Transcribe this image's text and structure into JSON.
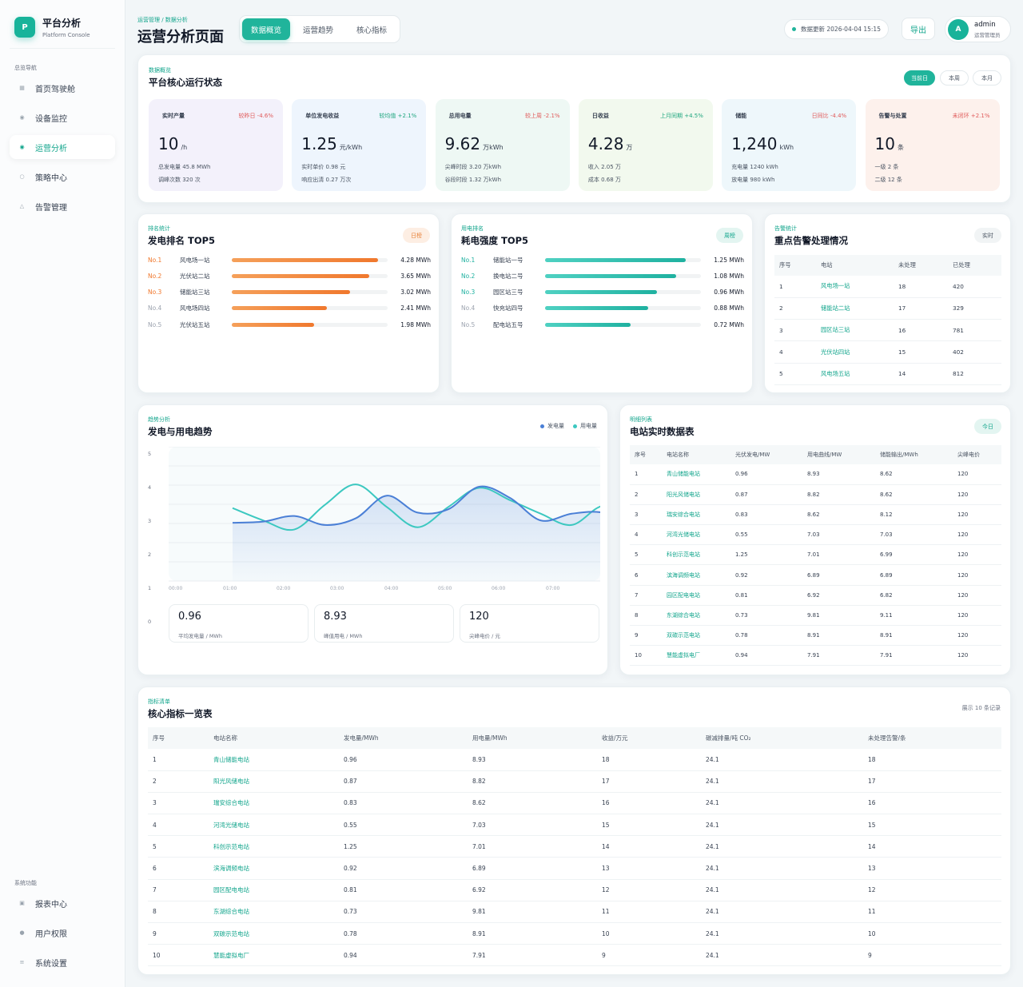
{
  "brand": {
    "logo": "P",
    "name": "平台分析",
    "sub": "Platform Console"
  },
  "nav": {
    "group1": "总览导航",
    "items": [
      {
        "label": "首页驾驶舱",
        "icon": "grid-icon",
        "glyph": "▦"
      },
      {
        "label": "设备监控",
        "icon": "monitor-icon",
        "glyph": "◉"
      },
      {
        "label": "运营分析",
        "icon": "analysis-icon",
        "glyph": "◉"
      },
      {
        "label": "策略中心",
        "icon": "strategy-icon",
        "glyph": "○"
      },
      {
        "label": "告警管理",
        "icon": "alert-icon",
        "glyph": "△"
      }
    ],
    "group2": "系统功能",
    "items2": [
      {
        "label": "报表中心",
        "icon": "report-icon",
        "glyph": "▣"
      },
      {
        "label": "用户权限",
        "icon": "user-icon",
        "glyph": "●"
      },
      {
        "label": "系统设置",
        "icon": "settings-icon",
        "glyph": "≡"
      }
    ]
  },
  "header": {
    "breadcrumb": "运营管理 / 数据分析",
    "title": "运营分析页面",
    "tabs": [
      "数据概览",
      "运营趋势",
      "核心指标"
    ],
    "update": "数据更新 2026-04-04 15:15",
    "export": "导出",
    "user": {
      "initial": "A",
      "name": "admin",
      "role": "运营管理员"
    }
  },
  "overview": {
    "tag": "数据概览",
    "title": "平台核心运行状态",
    "ranges": [
      "当前日",
      "本周",
      "本月"
    ],
    "kpis": [
      {
        "name": "实时产量",
        "delta": "较昨日 -4.6%",
        "value": "10",
        "unit": "/h",
        "s1": "总发电量 45.8 MWh",
        "s2": "调峰次数 320 次",
        "bg": "#f3f1fb",
        "dc": "#e05a5a"
      },
      {
        "name": "单位发电收益",
        "delta": "较均值 +2.1%",
        "value": "1.25",
        "unit": "元/kWh",
        "s1": "实时单价 0.98 元",
        "s2": "响应出清 0.27 万次",
        "bg": "#eef5fd",
        "dc": "#1fa67f"
      },
      {
        "name": "总用电量",
        "delta": "较上周 -2.1%",
        "value": "9.62",
        "unit": "万kWh",
        "s1": "尖峰时段 3.20 万kWh",
        "s2": "谷段时段 1.32 万kWh",
        "bg": "#eef8f4",
        "dc": "#e05a5a"
      },
      {
        "name": "日收益",
        "delta": "上月同期 +4.5%",
        "value": "4.28",
        "unit": "万",
        "s1": "收入 2.05 万",
        "s2": "成本 0.68 万",
        "bg": "#f2f9ee",
        "dc": "#1fa67f"
      },
      {
        "name": "储能",
        "delta": "日同比 -4.4%",
        "value": "1,240",
        "unit": "kWh",
        "s1": "充电量 1240 kWh",
        "s2": "放电量 980 kWh",
        "bg": "#eef7fb",
        "dc": "#e05a5a"
      },
      {
        "name": "告警与处置",
        "delta": "未闭环 +2.1%",
        "value": "10",
        "unit": "条",
        "s1": "一级 2 条",
        "s2": "二级 12 条",
        "bg": "#fdf1ec",
        "dc": "#e05a5a"
      }
    ]
  },
  "genRank": {
    "tag": "排名统计",
    "title": "发电排名 TOP5",
    "badge": "日榜",
    "items": [
      {
        "no": "No.1",
        "name": "风电场一站",
        "value": "4.28 MWh",
        "pct": 0.94
      },
      {
        "no": "No.2",
        "name": "光伏站二站",
        "value": "3.65 MWh",
        "pct": 0.88
      },
      {
        "no": "No.3",
        "name": "储能站三站",
        "value": "3.02 MWh",
        "pct": 0.76
      },
      {
        "no": "No.4",
        "name": "风电场四站",
        "value": "2.41 MWh",
        "pct": 0.61
      },
      {
        "no": "No.5",
        "name": "光伏站五站",
        "value": "1.98 MWh",
        "pct": 0.53
      }
    ]
  },
  "useRank": {
    "tag": "用电排名",
    "title": "耗电强度 TOP5",
    "badge": "周榜",
    "items": [
      {
        "no": "No.1",
        "name": "储能站一号",
        "value": "1.25 MWh",
        "pct": 0.9
      },
      {
        "no": "No.2",
        "name": "换电站二号",
        "value": "1.08 MWh",
        "pct": 0.84
      },
      {
        "no": "No.3",
        "name": "园区站三号",
        "value": "0.96 MWh",
        "pct": 0.72
      },
      {
        "no": "No.4",
        "name": "快充站四号",
        "value": "0.88 MWh",
        "pct": 0.66
      },
      {
        "no": "No.5",
        "name": "配电站五号",
        "value": "0.72 MWh",
        "pct": 0.55
      }
    ]
  },
  "alarm": {
    "tag": "告警统计",
    "title": "重点告警处理情况",
    "badge": "实时",
    "headers": [
      "序号",
      "电站",
      "未处理",
      "已处理"
    ],
    "rows": [
      [
        "1",
        "风电场一站",
        "18",
        "420"
      ],
      [
        "2",
        "储能站二站",
        "17",
        "329"
      ],
      [
        "3",
        "园区站三站",
        "16",
        "781"
      ],
      [
        "4",
        "光伏站四站",
        "15",
        "402"
      ],
      [
        "5",
        "风电场五站",
        "14",
        "812"
      ]
    ]
  },
  "trend": {
    "tag": "趋势分析",
    "title": "发电与用电趋势",
    "legend": [
      {
        "name": "发电量",
        "color": "#4a7fd6"
      },
      {
        "name": "用电量",
        "color": "#3cc8c0"
      }
    ],
    "yticks": [
      "5",
      "4",
      "3",
      "2",
      "1",
      "0"
    ],
    "xticks": [
      "00:00",
      "01:00",
      "02:00",
      "03:00",
      "04:00",
      "05:00",
      "06:00",
      "07:00"
    ],
    "stats": [
      {
        "value": "0.96",
        "label": "平均发电量 / MWh"
      },
      {
        "value": "8.93",
        "label": "峰值用电 / MWh"
      },
      {
        "value": "120",
        "label": "尖峰电价 / 元"
      }
    ]
  },
  "chart_data": {
    "type": "line",
    "x": [
      0,
      0.5,
      1,
      1.5,
      2,
      2.5,
      3,
      3.5,
      4,
      4.5,
      5,
      5.5,
      6,
      6.5
    ],
    "xticks": [
      "00:00",
      "01:00",
      "02:00",
      "03:00",
      "04:00",
      "05:00",
      "06:00",
      "07:00"
    ],
    "ylim": [
      0,
      5
    ],
    "series": [
      {
        "name": "发电量",
        "color": "#4a7fd6",
        "values": [
          2.3,
          2.35,
          2.6,
          2.2,
          2.5,
          3.5,
          2.75,
          2.9,
          3.9,
          3.4,
          2.4,
          2.7,
          2.75,
          2.2
        ]
      },
      {
        "name": "用电量",
        "color": "#3cc8c0",
        "values": [
          2.95,
          2.4,
          2.0,
          3.1,
          4.0,
          3.0,
          2.1,
          3.0,
          3.85,
          3.3,
          2.7,
          2.2,
          3.05,
          2.75
        ]
      }
    ]
  },
  "realtime": {
    "tag": "明细列表",
    "title": "电站实时数据表",
    "badge": "今日",
    "headers": [
      "序号",
      "电站名称",
      "光伏发电/MW",
      "用电曲线/MW",
      "储能输出/MWh",
      "尖峰电价"
    ],
    "rows": [
      [
        "1",
        "青山储能电站",
        "0.96",
        "8.93",
        "8.62",
        "120"
      ],
      [
        "2",
        "阳光风储电站",
        "0.87",
        "8.82",
        "8.62",
        "120"
      ],
      [
        "3",
        "瑞安综合电站",
        "0.83",
        "8.62",
        "8.12",
        "120"
      ],
      [
        "4",
        "河湾光储电站",
        "0.55",
        "7.03",
        "7.03",
        "120"
      ],
      [
        "5",
        "科创示范电站",
        "1.25",
        "7.01",
        "6.99",
        "120"
      ],
      [
        "6",
        "滨海调频电站",
        "0.92",
        "6.89",
        "6.89",
        "120"
      ],
      [
        "7",
        "园区配电电站",
        "0.81",
        "6.92",
        "6.82",
        "120"
      ],
      [
        "8",
        "东湖综合电站",
        "0.73",
        "9.81",
        "9.11",
        "120"
      ],
      [
        "9",
        "双碳示范电站",
        "0.78",
        "8.91",
        "8.91",
        "120"
      ],
      [
        "10",
        "慧能虚拟电厂",
        "0.94",
        "7.91",
        "7.91",
        "120"
      ]
    ]
  },
  "core": {
    "tag": "指标清单",
    "title": "核心指标一览表",
    "note": "展示 10 条记录",
    "headers": [
      "序号",
      "电站名称",
      "发电量/MWh",
      "用电量/MWh",
      "收益/万元",
      "碳减排量/吨 CO₂",
      "未处理告警/条"
    ],
    "rows": [
      [
        "1",
        "青山储能电站",
        "0.96",
        "8.93",
        "18",
        "24.1",
        "18"
      ],
      [
        "2",
        "阳光风储电站",
        "0.87",
        "8.82",
        "17",
        "24.1",
        "17"
      ],
      [
        "3",
        "瑞安综合电站",
        "0.83",
        "8.62",
        "16",
        "24.1",
        "16"
      ],
      [
        "4",
        "河湾光储电站",
        "0.55",
        "7.03",
        "15",
        "24.1",
        "15"
      ],
      [
        "5",
        "科创示范电站",
        "1.25",
        "7.01",
        "14",
        "24.1",
        "14"
      ],
      [
        "6",
        "滨海调频电站",
        "0.92",
        "6.89",
        "13",
        "24.1",
        "13"
      ],
      [
        "7",
        "园区配电电站",
        "0.81",
        "6.92",
        "12",
        "24.1",
        "12"
      ],
      [
        "8",
        "东湖综合电站",
        "0.73",
        "9.81",
        "11",
        "24.1",
        "11"
      ],
      [
        "9",
        "双碳示范电站",
        "0.78",
        "8.91",
        "10",
        "24.1",
        "10"
      ],
      [
        "10",
        "慧能虚拟电厂",
        "0.94",
        "7.91",
        "9",
        "24.1",
        "9"
      ]
    ]
  }
}
